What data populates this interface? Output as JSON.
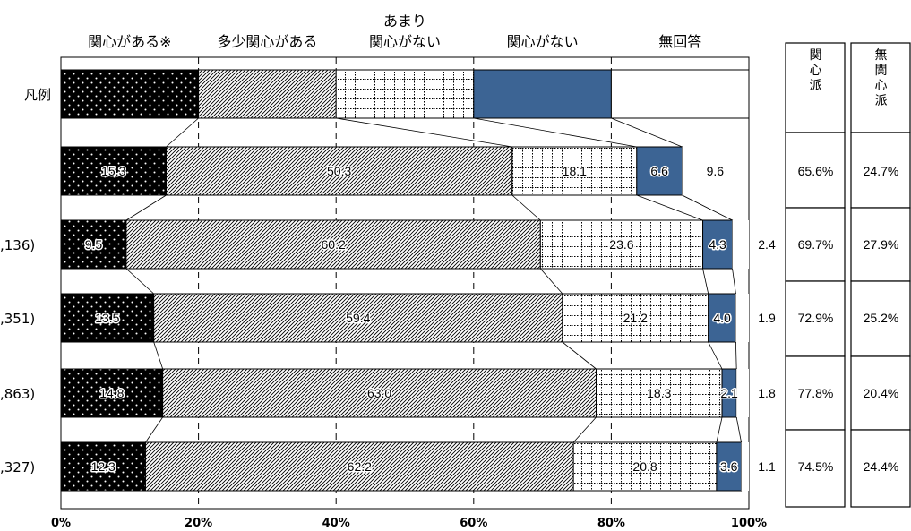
{
  "chart_data": {
    "type": "bar",
    "orientation": "horizontal",
    "stacked": true,
    "xlim": [
      0,
      100
    ],
    "x_ticks": [
      "0%",
      "20%",
      "40%",
      "60%",
      "80%",
      "100%"
    ],
    "grid": true,
    "legend_row_label": "凡例",
    "legend_values": [
      20,
      20,
      20,
      20,
      20
    ],
    "categories": [
      "",
      ",136)",
      ",351)",
      ",863)",
      ",327)"
    ],
    "series": [
      {
        "name": "関心がある※",
        "values": [
          15.3,
          9.5,
          13.5,
          14.8,
          12.3
        ]
      },
      {
        "name": "多少関心がある",
        "values": [
          50.3,
          60.2,
          59.4,
          63.0,
          62.2
        ]
      },
      {
        "name": "あまり関心がない",
        "values": [
          18.1,
          23.6,
          21.2,
          18.3,
          20.8
        ]
      },
      {
        "name": "関心がない",
        "values": [
          6.6,
          4.3,
          4.0,
          2.1,
          3.6
        ]
      },
      {
        "name": "無回答",
        "values": [
          9.6,
          2.4,
          1.9,
          1.8,
          1.1
        ]
      }
    ],
    "series_header_lines": [
      [
        "関心がある※"
      ],
      [
        "多少関心がある"
      ],
      [
        "あまり",
        "関心がない"
      ],
      [
        "関心がない"
      ],
      [
        "無回答"
      ]
    ],
    "series_colors": [
      "#000000",
      "hatch",
      "grid",
      "#3c6494",
      "#ffffff"
    ],
    "value_labels": [
      [
        "15.3",
        "50.3",
        "18.1",
        "6.6",
        "9.6"
      ],
      [
        "9.5",
        "60.2",
        "23.6",
        "4.3",
        "2.4"
      ],
      [
        "13.5",
        "59.4",
        "21.2",
        "4.0",
        "1.9"
      ],
      [
        "14.8",
        "63.0",
        "18.3",
        "2.1",
        "1.8"
      ],
      [
        "12.3",
        "62.2",
        "20.8",
        "3.6",
        "1.1"
      ]
    ],
    "summary_table": {
      "headers": [
        "関心派",
        "無関心派"
      ],
      "rows": [
        [
          "65.6%",
          "24.7%"
        ],
        [
          "69.7%",
          "27.9%"
        ],
        [
          "72.9%",
          "25.2%"
        ],
        [
          "77.8%",
          "20.4%"
        ],
        [
          "74.5%",
          "24.4%"
        ]
      ]
    }
  }
}
